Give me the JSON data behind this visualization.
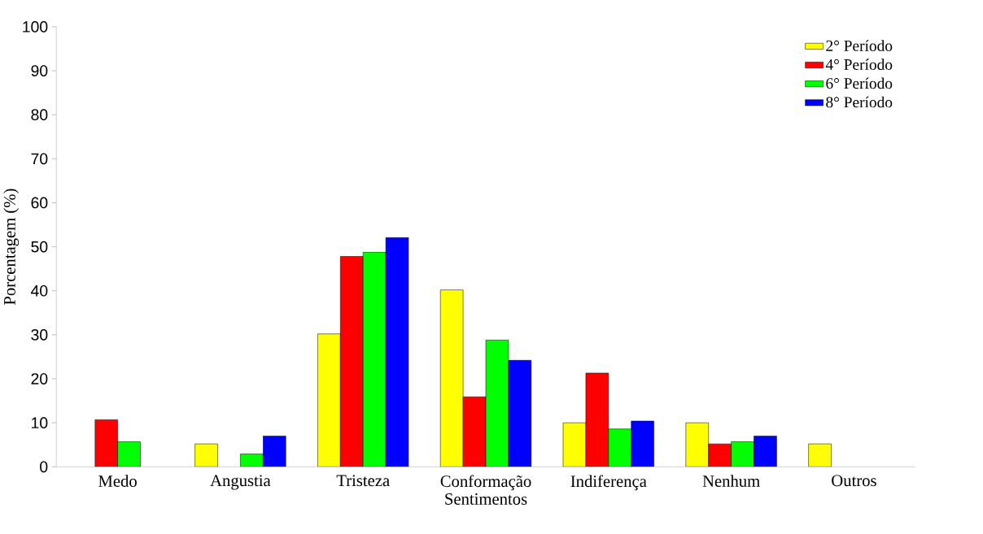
{
  "chart_data": {
    "type": "bar",
    "xlabel": "Sentimentos",
    "ylabel": "Porcentagem (%)",
    "categories": [
      "Medo",
      "Angustia",
      "Tristeza",
      "Conformação",
      "Indiferença",
      "Nenhum",
      "Outros"
    ],
    "series": [
      {
        "name": "2° Período",
        "color": "#ffff00",
        "values": [
          null,
          5.2,
          30.2,
          40.2,
          10.0,
          10.0,
          5.2
        ]
      },
      {
        "name": "4° Período",
        "color": "#ff0000",
        "values": [
          10.7,
          null,
          47.8,
          15.9,
          21.3,
          5.2,
          null
        ]
      },
      {
        "name": "6° Período",
        "color": "#00ff00",
        "values": [
          5.7,
          2.9,
          48.8,
          28.8,
          8.6,
          5.7,
          null
        ]
      },
      {
        "name": "8° Período",
        "color": "#0000ff",
        "values": [
          null,
          7.0,
          52.1,
          24.2,
          10.4,
          7.0,
          null
        ]
      }
    ],
    "ylim": [
      0,
      100
    ],
    "yticks": [
      0,
      10,
      20,
      30,
      40,
      50,
      60,
      70,
      80,
      90,
      100
    ],
    "grid": false,
    "legend": "top right"
  }
}
